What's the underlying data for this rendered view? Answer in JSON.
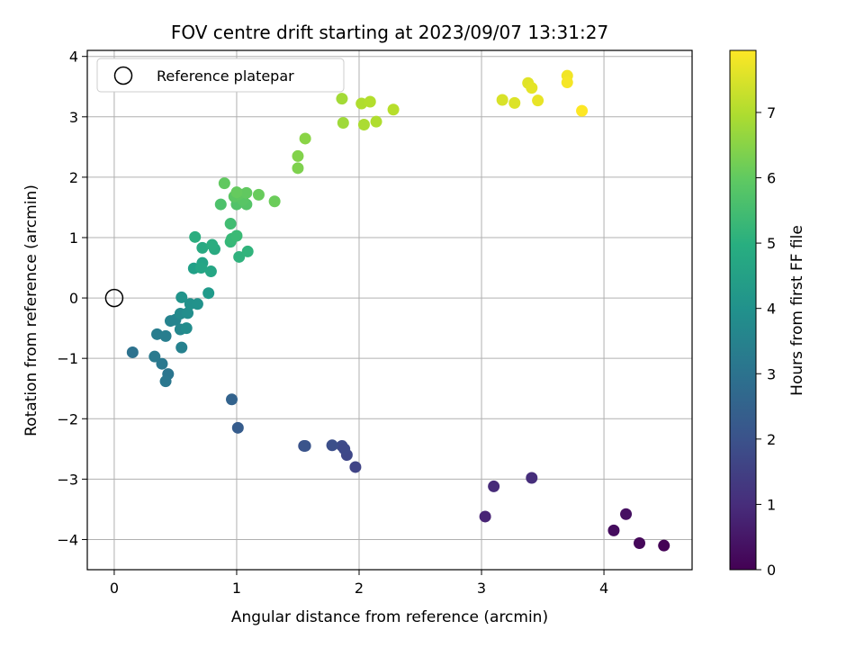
{
  "chart_data": {
    "type": "scatter",
    "title": "FOV centre drift starting at 2023/09/07 13:31:27",
    "xlabel": "Angular distance from reference (arcmin)",
    "ylabel": "Rotation from reference (arcmin)",
    "xlim": [
      -0.22,
      4.72
    ],
    "ylim": [
      -4.5,
      4.1
    ],
    "xticks": [
      0,
      1,
      2,
      3,
      4
    ],
    "yticks": [
      -4,
      -3,
      -2,
      -1,
      0,
      1,
      2,
      3,
      4
    ],
    "grid": true,
    "legend": {
      "placement": "top-left",
      "entries": [
        "Reference platepar"
      ]
    },
    "reference_point": {
      "x": 0,
      "y": 0
    },
    "colorbar": {
      "label": "Hours from first FF file",
      "range": [
        0,
        7.95
      ],
      "ticks": [
        0,
        1,
        2,
        3,
        4,
        5,
        6,
        7
      ],
      "colormap": "viridis"
    },
    "points": [
      {
        "x": 4.49,
        "y": -4.1,
        "c": 0.05
      },
      {
        "x": 4.29,
        "y": -4.06,
        "c": 0.15
      },
      {
        "x": 4.08,
        "y": -3.85,
        "c": 0.25
      },
      {
        "x": 4.18,
        "y": -3.58,
        "c": 0.35
      },
      {
        "x": 3.03,
        "y": -3.62,
        "c": 0.8
      },
      {
        "x": 3.1,
        "y": -3.12,
        "c": 0.95
      },
      {
        "x": 3.41,
        "y": -2.98,
        "c": 1.05
      },
      {
        "x": 1.97,
        "y": -2.8,
        "c": 1.6
      },
      {
        "x": 1.9,
        "y": -2.6,
        "c": 1.7
      },
      {
        "x": 1.86,
        "y": -2.45,
        "c": 1.8
      },
      {
        "x": 1.88,
        "y": -2.5,
        "c": 1.75
      },
      {
        "x": 1.78,
        "y": -2.44,
        "c": 1.9
      },
      {
        "x": 1.55,
        "y": -2.45,
        "c": 2.0
      },
      {
        "x": 1.56,
        "y": -2.45,
        "c": 2.05
      },
      {
        "x": 1.01,
        "y": -2.15,
        "c": 2.3
      },
      {
        "x": 0.96,
        "y": -1.68,
        "c": 2.5
      },
      {
        "x": 0.15,
        "y": -0.9,
        "c": 3.0
      },
      {
        "x": 0.44,
        "y": -1.26,
        "c": 3.1
      },
      {
        "x": 0.42,
        "y": -1.38,
        "c": 3.15
      },
      {
        "x": 0.39,
        "y": -1.09,
        "c": 3.2
      },
      {
        "x": 0.33,
        "y": -0.97,
        "c": 3.25
      },
      {
        "x": 0.35,
        "y": -0.6,
        "c": 3.35
      },
      {
        "x": 0.42,
        "y": -0.63,
        "c": 3.4
      },
      {
        "x": 0.55,
        "y": -0.82,
        "c": 3.5
      },
      {
        "x": 0.46,
        "y": -0.38,
        "c": 3.55
      },
      {
        "x": 0.5,
        "y": -0.36,
        "c": 3.6
      },
      {
        "x": 0.54,
        "y": -0.52,
        "c": 3.7
      },
      {
        "x": 0.54,
        "y": -0.26,
        "c": 3.8
      },
      {
        "x": 0.59,
        "y": -0.5,
        "c": 3.85
      },
      {
        "x": 0.6,
        "y": -0.25,
        "c": 3.9
      },
      {
        "x": 0.62,
        "y": -0.1,
        "c": 4.0
      },
      {
        "x": 0.68,
        "y": -0.1,
        "c": 4.05
      },
      {
        "x": 0.55,
        "y": 0.01,
        "c": 4.1
      },
      {
        "x": 0.77,
        "y": 0.08,
        "c": 4.3
      },
      {
        "x": 0.65,
        "y": 0.49,
        "c": 4.5
      },
      {
        "x": 0.72,
        "y": 0.58,
        "c": 4.6
      },
      {
        "x": 0.71,
        "y": 0.5,
        "c": 4.65
      },
      {
        "x": 0.79,
        "y": 0.44,
        "c": 4.7
      },
      {
        "x": 0.72,
        "y": 0.83,
        "c": 4.8
      },
      {
        "x": 0.82,
        "y": 0.81,
        "c": 4.85
      },
      {
        "x": 0.8,
        "y": 0.88,
        "c": 4.9
      },
      {
        "x": 0.66,
        "y": 1.01,
        "c": 4.95
      },
      {
        "x": 1.02,
        "y": 0.68,
        "c": 5.1
      },
      {
        "x": 1.09,
        "y": 0.77,
        "c": 5.15
      },
      {
        "x": 0.95,
        "y": 0.93,
        "c": 5.3
      },
      {
        "x": 0.96,
        "y": 0.98,
        "c": 5.35
      },
      {
        "x": 1.0,
        "y": 1.03,
        "c": 5.4
      },
      {
        "x": 0.95,
        "y": 1.23,
        "c": 5.5
      },
      {
        "x": 0.87,
        "y": 1.55,
        "c": 5.7
      },
      {
        "x": 1.0,
        "y": 1.55,
        "c": 5.75
      },
      {
        "x": 1.08,
        "y": 1.55,
        "c": 5.8
      },
      {
        "x": 1.05,
        "y": 1.62,
        "c": 5.85
      },
      {
        "x": 0.98,
        "y": 1.68,
        "c": 5.9
      },
      {
        "x": 1.02,
        "y": 1.72,
        "c": 5.95
      },
      {
        "x": 1.08,
        "y": 1.74,
        "c": 6.0
      },
      {
        "x": 1.0,
        "y": 1.75,
        "c": 6.05
      },
      {
        "x": 1.18,
        "y": 1.71,
        "c": 6.1
      },
      {
        "x": 1.31,
        "y": 1.6,
        "c": 6.15
      },
      {
        "x": 0.9,
        "y": 1.9,
        "c": 6.0
      },
      {
        "x": 1.5,
        "y": 2.15,
        "c": 6.4
      },
      {
        "x": 1.5,
        "y": 2.35,
        "c": 6.45
      },
      {
        "x": 1.56,
        "y": 2.64,
        "c": 6.55
      },
      {
        "x": 1.87,
        "y": 2.9,
        "c": 6.8
      },
      {
        "x": 1.86,
        "y": 3.3,
        "c": 6.85
      },
      {
        "x": 2.04,
        "y": 2.87,
        "c": 6.95
      },
      {
        "x": 2.14,
        "y": 2.92,
        "c": 7.0
      },
      {
        "x": 2.02,
        "y": 3.22,
        "c": 7.0
      },
      {
        "x": 2.09,
        "y": 3.25,
        "c": 7.05
      },
      {
        "x": 2.28,
        "y": 3.12,
        "c": 7.1
      },
      {
        "x": 3.17,
        "y": 3.28,
        "c": 7.5
      },
      {
        "x": 3.27,
        "y": 3.23,
        "c": 7.55
      },
      {
        "x": 3.38,
        "y": 3.56,
        "c": 7.6
      },
      {
        "x": 3.41,
        "y": 3.48,
        "c": 7.65
      },
      {
        "x": 3.46,
        "y": 3.27,
        "c": 7.7
      },
      {
        "x": 3.7,
        "y": 3.68,
        "c": 7.8
      },
      {
        "x": 3.7,
        "y": 3.57,
        "c": 7.85
      },
      {
        "x": 3.82,
        "y": 3.1,
        "c": 7.95
      }
    ]
  }
}
